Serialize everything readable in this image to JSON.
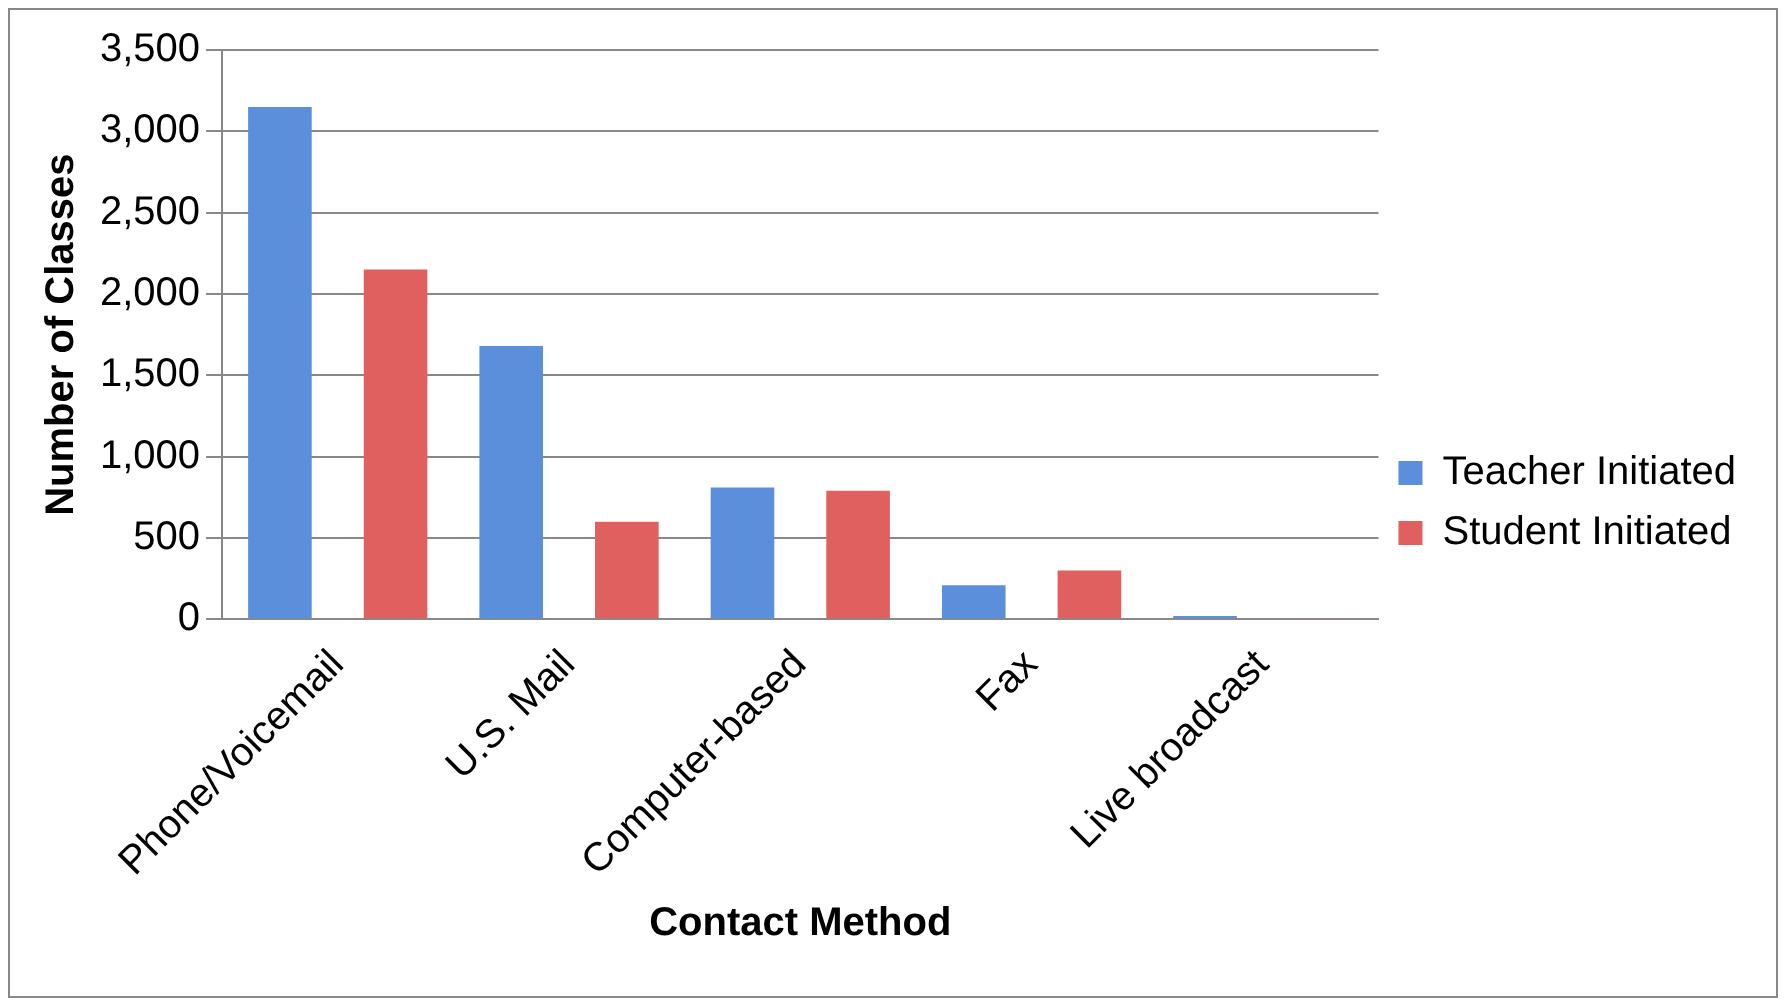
{
  "chart_data": {
    "type": "bar",
    "xlabel": "Contact Method",
    "ylabel": "Number of Classes",
    "categories": [
      "Phone/Voicemail",
      "U.S. Mail",
      "Computer-based",
      "Fax",
      "Live broadcast"
    ],
    "series": [
      {
        "name": "Teacher Initiated",
        "color": "#5b8fdb",
        "values": [
          3150,
          1680,
          810,
          210,
          20
        ]
      },
      {
        "name": "Student Initiated",
        "color": "#e06060",
        "values": [
          2150,
          600,
          790,
          300,
          5
        ]
      }
    ],
    "ylim": [
      0,
      3500
    ],
    "yticks": [
      {
        "value": 0,
        "label": "0"
      },
      {
        "value": 500,
        "label": "500"
      },
      {
        "value": 1000,
        "label": "1,000"
      },
      {
        "value": 1500,
        "label": "1,500"
      },
      {
        "value": 2000,
        "label": "2,000"
      },
      {
        "value": 2500,
        "label": "2,500"
      },
      {
        "value": 3000,
        "label": "3,000"
      },
      {
        "value": 3500,
        "label": "3,500"
      }
    ],
    "grid": "y",
    "legend": "right"
  }
}
